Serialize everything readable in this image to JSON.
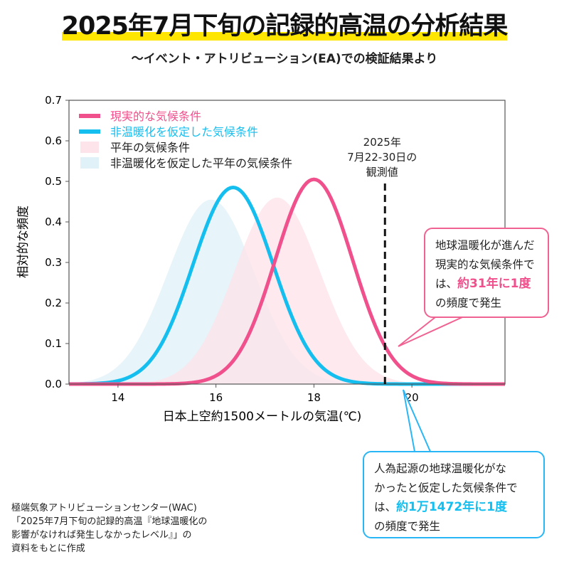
{
  "title": "2025年7月下旬の記録的高温の分析結果",
  "subtitle": "〜イベント・アトリビューション(EA)での検証結果より",
  "colors": {
    "actual": "#f0508c",
    "nonwarming": "#14bff0",
    "actual_fill": "#fde4ea",
    "nonwarming_fill": "#e1f1f8",
    "title_highlight": "#ffe600"
  },
  "chart_data": {
    "type": "line",
    "xlabel": "日本上空約1500メートルの気温(℃)",
    "ylabel": "相対的な頻度",
    "xlim": [
      13,
      21.9
    ],
    "ylim": [
      0,
      0.7
    ],
    "xticks": [
      "14",
      "16",
      "18",
      "20"
    ],
    "xtick_values": [
      14,
      16,
      18,
      20
    ],
    "yticks": [
      "0.0",
      "0.1",
      "0.2",
      "0.3",
      "0.4",
      "0.5",
      "0.6",
      "0.7"
    ],
    "ytick_values": [
      0,
      0.1,
      0.2,
      0.3,
      0.4,
      0.5,
      0.6,
      0.7
    ],
    "legend_placement": "top-left",
    "series": [
      {
        "name": "現実的な気候条件",
        "kind": "line",
        "mean": 18.0,
        "sd": 0.79,
        "peak": 0.505
      },
      {
        "name": "非温暖化を仮定した気候条件",
        "kind": "line",
        "mean": 16.35,
        "sd": 0.82,
        "peak": 0.485
      },
      {
        "name": "平年の気候条件",
        "kind": "area",
        "mean": 17.25,
        "sd": 0.87,
        "peak": 0.46
      },
      {
        "name": "非温暖化を仮定した平年の気候条件",
        "kind": "area",
        "mean": 15.9,
        "sd": 0.88,
        "peak": 0.455
      }
    ],
    "observed": {
      "x": 19.45,
      "label": [
        "2025年",
        "7月22-30日の",
        "観測値"
      ]
    }
  },
  "callouts": {
    "actual": {
      "lines": [
        "地球温暖化が進んだ",
        "現実的な気候条件で"
      ],
      "prefix": "は、",
      "highlight": "約31年に1度",
      "suffix": "の頻度で発生"
    },
    "nonwarming": {
      "lines": [
        "人為起源の地球温暖化がな",
        "かったと仮定した気候条件で"
      ],
      "prefix": "は、",
      "highlight": "約1万1472年に1度",
      "suffix": "の頻度で発生"
    }
  },
  "source": [
    "極端気象アトリビューションセンター(WAC)",
    "「2025年7月下旬の記録的高温『地球温暖化の",
    "影響がなければ発生しなかったレベル』」の",
    "資料をもとに作成"
  ]
}
